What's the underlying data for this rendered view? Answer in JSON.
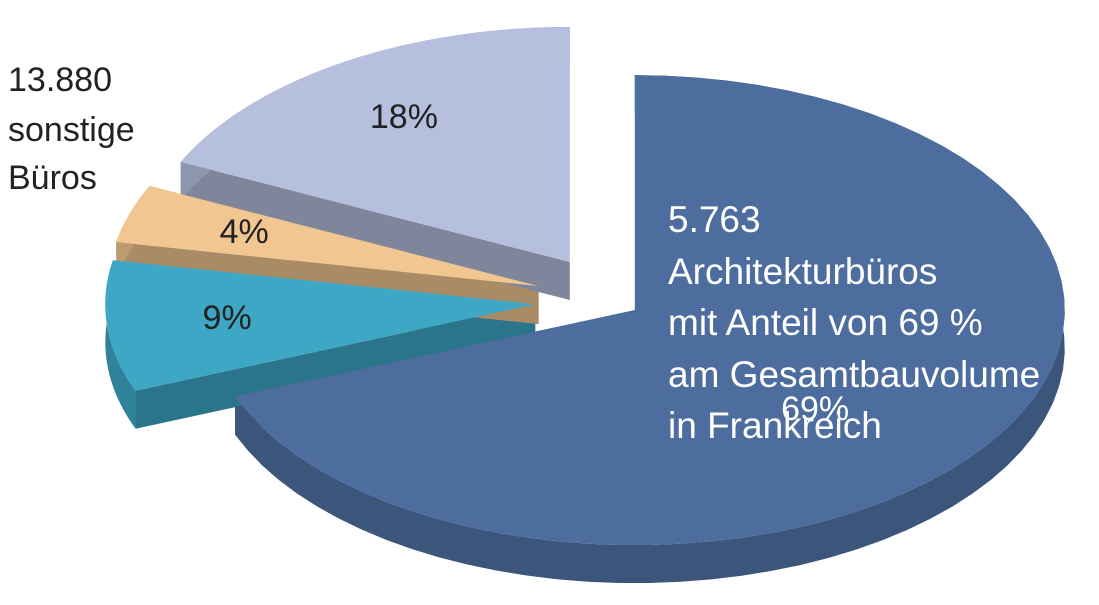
{
  "chart_data": {
    "type": "pie",
    "categories": null,
    "values": [
      69,
      9,
      4,
      18
    ],
    "value_labels": [
      "69%",
      "9%",
      "4%",
      "18%"
    ],
    "colors": [
      "#4d6d9e",
      "#3ea7c6",
      "#f2c690",
      "#b6c0de"
    ],
    "annotations": [
      {
        "lines": [
          "13.880",
          "sonstige",
          "Büros"
        ]
      },
      {
        "lines": [
          "5.763",
          "Architekturbüros",
          "mit Anteil von 69 %",
          "am Gesamtbauvolume",
          "in Frankreich"
        ]
      }
    ]
  }
}
